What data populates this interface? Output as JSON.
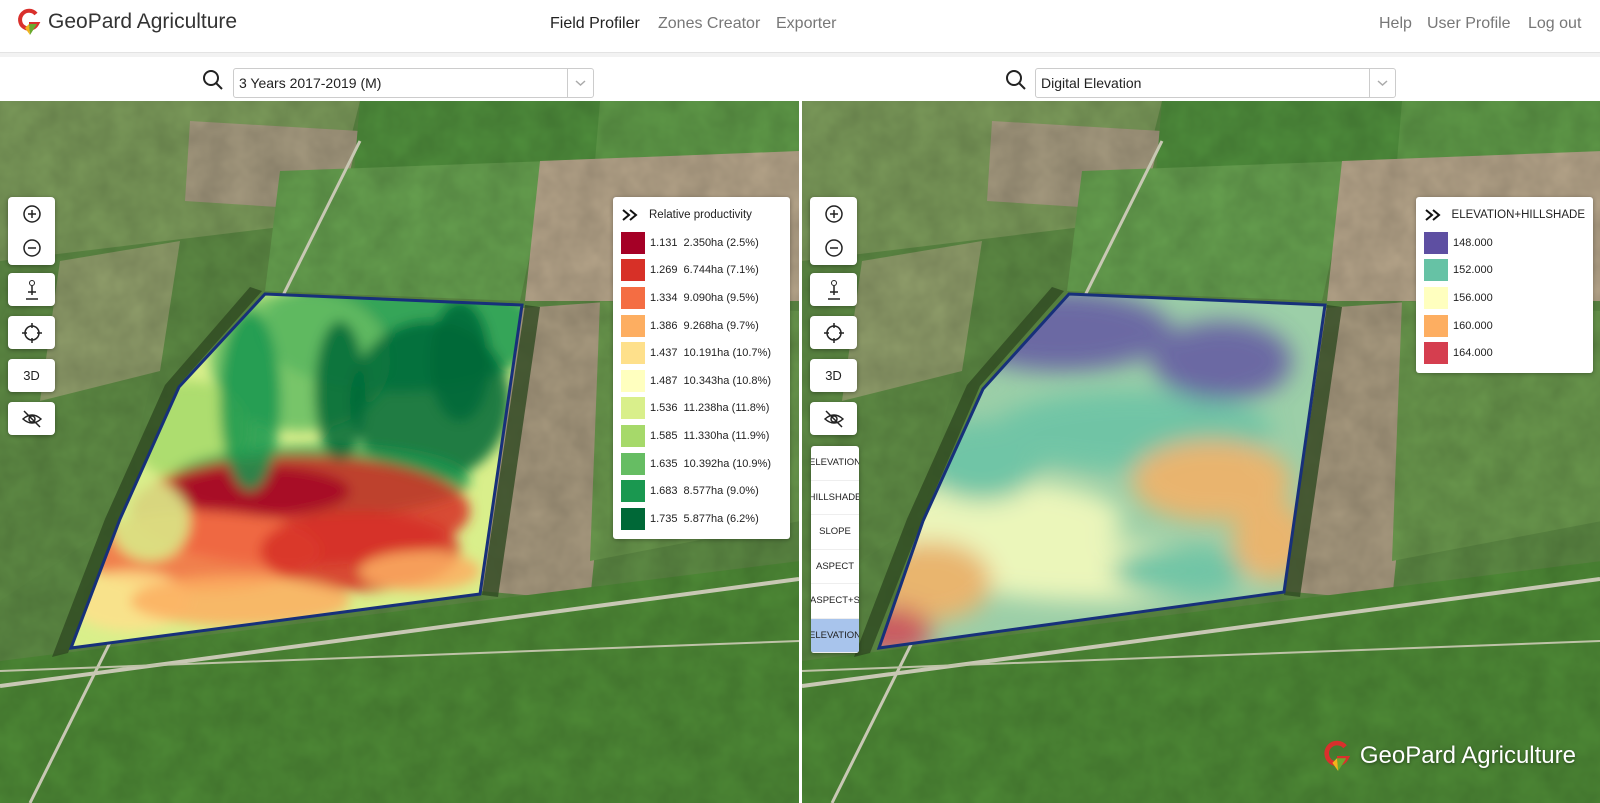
{
  "header": {
    "logo": "GeoPard Agriculture",
    "nav": [
      "Field Profiler",
      "Zones Creator",
      "Exporter"
    ],
    "user_menu": [
      "Help",
      "User Profile",
      "Log out"
    ]
  },
  "panes": [
    {
      "search": "3 Years 2017-2019 (M)",
      "controls": {
        "view_3d": "3D"
      },
      "legend": {
        "title": "Relative productivity",
        "items": [
          {
            "value": "1.131",
            "area": "2.350ha (2.5%)",
            "color": "#a50026"
          },
          {
            "value": "1.269",
            "area": "6.744ha (7.1%)",
            "color": "#d73027"
          },
          {
            "value": "1.334",
            "area": "9.090ha (9.5%)",
            "color": "#f46d43"
          },
          {
            "value": "1.386",
            "area": "9.268ha (9.7%)",
            "color": "#fdae61"
          },
          {
            "value": "1.437",
            "area": "10.191ha (10.7%)",
            "color": "#fee08b"
          },
          {
            "value": "1.487",
            "area": "10.343ha (10.8%)",
            "color": "#ffffbf"
          },
          {
            "value": "1.536",
            "area": "11.238ha (11.8%)",
            "color": "#d9ef8b"
          },
          {
            "value": "1.585",
            "area": "11.330ha (11.9%)",
            "color": "#a6d96a"
          },
          {
            "value": "1.635",
            "area": "10.392ha (10.9%)",
            "color": "#66bd63"
          },
          {
            "value": "1.683",
            "area": "8.577ha (9.0%)",
            "color": "#1a9850"
          },
          {
            "value": "1.735",
            "area": "5.877ha (6.2%)",
            "color": "#006837"
          }
        ]
      }
    },
    {
      "search": "Digital Elevation",
      "controls": {
        "view_3d": "3D"
      },
      "layers": [
        {
          "label": "ELEVATION"
        },
        {
          "label": "HILLSHADE"
        },
        {
          "label": "SLOPE"
        },
        {
          "label": "ASPECT"
        },
        {
          "label": "ASPECT+S"
        },
        {
          "label": "ELEVATION",
          "active": true
        }
      ],
      "legend": {
        "title": "ELEVATION+HILLSHADE",
        "items": [
          {
            "value": "148.000",
            "color": "#5e4fa2"
          },
          {
            "value": "152.000",
            "color": "#66c2a5"
          },
          {
            "value": "156.000",
            "color": "#ffffbf"
          },
          {
            "value": "160.000",
            "color": "#fdae61"
          },
          {
            "value": "164.000",
            "color": "#d53e4f"
          }
        ]
      }
    }
  ],
  "watermark": "GeoPard Agriculture"
}
